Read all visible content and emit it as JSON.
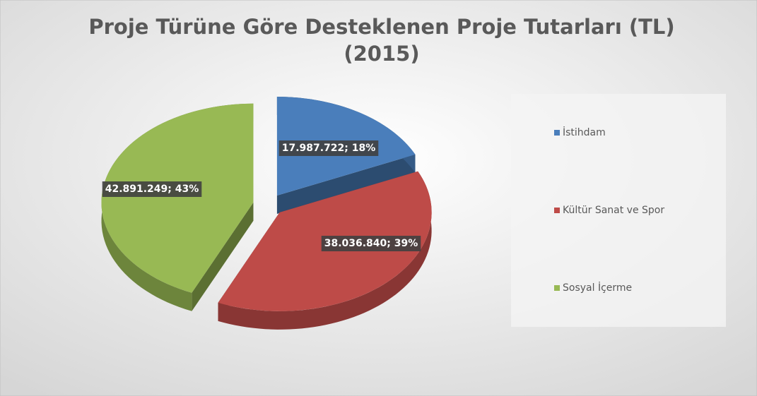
{
  "chart_data": {
    "type": "pie",
    "title": [
      "Proje Türüne Göre Desteklenen Proje Tutarları (TL)",
      "(2015)"
    ],
    "categories": [
      "İstihdam",
      "Kültür Sanat ve Spor",
      "Sosyal İçerme"
    ],
    "values": [
      17987722,
      38036840,
      42891249
    ],
    "value_labels": [
      "17.987.722; 18%",
      "38.036.840; 39%",
      "42.891.249; 43%"
    ],
    "colors": [
      "#4a7ebb",
      "#be4b48",
      "#98b954"
    ],
    "legend": "right"
  }
}
